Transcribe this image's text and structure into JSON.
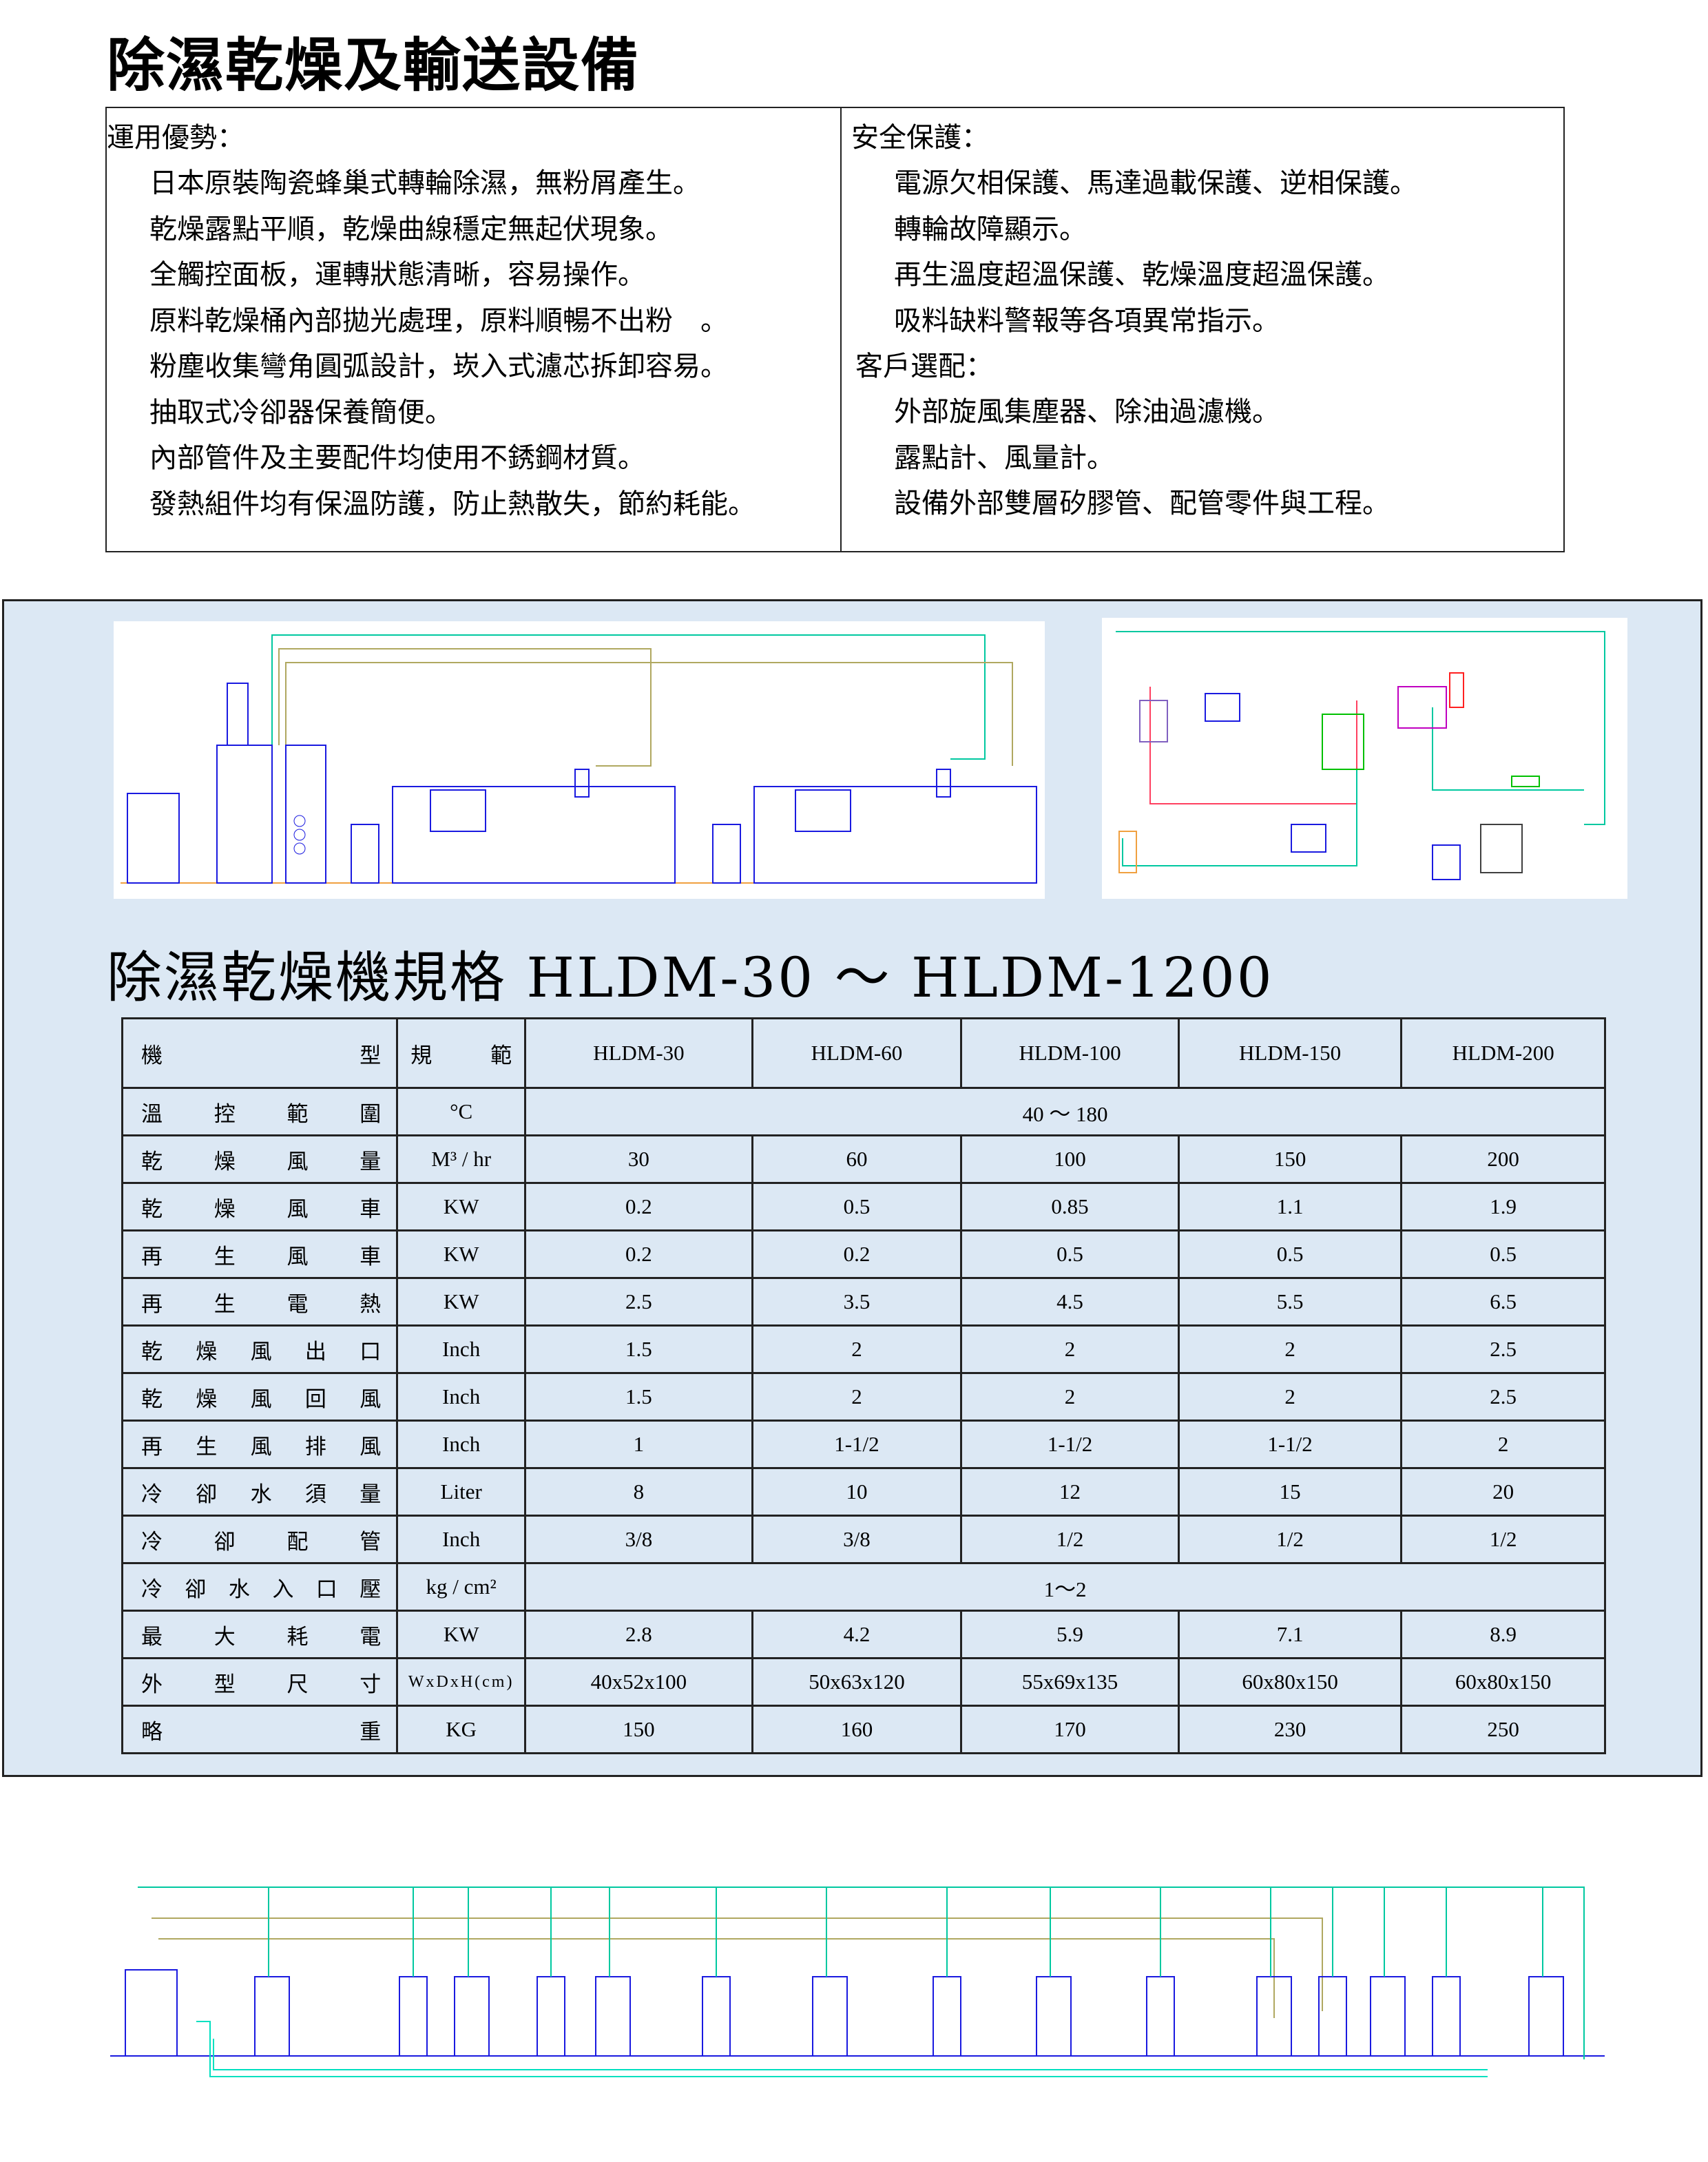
{
  "title": "除濕乾燥及輸送設備",
  "features": {
    "left_heading": "運用優勢：",
    "left_items": [
      "日本原裝陶瓷蜂巢式轉輪除濕，無粉屑產生。",
      "乾燥露點平順，乾燥曲線穩定無起伏現象。",
      "全觸控面板，運轉狀態清晰，容易操作。",
      "原料乾燥桶內部拋光處理，原料順暢不出粉　。",
      "粉塵收集彎角圓弧設計，崁入式濾芯拆卸容易。",
      "抽取式冷卻器保養簡便。",
      "內部管件及主要配件均使用不銹鋼材質。",
      "發熱組件均有保溫防護，防止熱散失，節約耗能。"
    ],
    "right_heading": "安全保護：",
    "right_items": [
      "電源欠相保護、馬達過載保護、逆相保護。",
      "轉輪故障顯示。",
      "再生溫度超溫保護、乾燥溫度超溫保護。",
      "吸料缺料警報等各項異常指示。"
    ],
    "options_heading": "客戶選配：",
    "options_items": [
      "外部旋風集塵器、除油過濾機。",
      "露點計、風量計。",
      "設備外部雙層矽膠管、配管零件與工程。"
    ]
  },
  "spec_title": "除濕乾燥機規格 HLDM-30 ～ HLDM-1200",
  "spec_table": {
    "header": {
      "label": "機型",
      "unit": "規範",
      "models": [
        "HLDM-30",
        "HLDM-60",
        "HLDM-100",
        "HLDM-150",
        "HLDM-200"
      ]
    },
    "rows": [
      {
        "label": "溫控範圍",
        "unit": "°C",
        "merged": "40 ～ 180"
      },
      {
        "label": "乾燥風量",
        "unit": "M³ / hr",
        "values": [
          "30",
          "60",
          "100",
          "150",
          "200"
        ]
      },
      {
        "label": "乾燥風車",
        "unit": "KW",
        "values": [
          "0.2",
          "0.5",
          "0.85",
          "1.1",
          "1.9"
        ]
      },
      {
        "label": "再生風車",
        "unit": "KW",
        "values": [
          "0.2",
          "0.2",
          "0.5",
          "0.5",
          "0.5"
        ]
      },
      {
        "label": "再生電熱",
        "unit": "KW",
        "values": [
          "2.5",
          "3.5",
          "4.5",
          "5.5",
          "6.5"
        ]
      },
      {
        "label": "乾燥風出口",
        "unit": "Inch",
        "values": [
          "1.5",
          "2",
          "2",
          "2",
          "2.5"
        ]
      },
      {
        "label": "乾燥風回風",
        "unit": "Inch",
        "values": [
          "1.5",
          "2",
          "2",
          "2",
          "2.5"
        ]
      },
      {
        "label": "再生風排風",
        "unit": "Inch",
        "values": [
          "1",
          "1-1/2",
          "1-1/2",
          "1-1/2",
          "2"
        ]
      },
      {
        "label": "冷卻水須量",
        "unit": "Liter",
        "values": [
          "8",
          "10",
          "12",
          "15",
          "20"
        ]
      },
      {
        "label": "冷卻配管",
        "unit": "Inch",
        "values": [
          "3/8",
          "3/8",
          "1/2",
          "1/2",
          "1/2"
        ]
      },
      {
        "label": "冷卻水入口壓",
        "unit": "kg / cm²",
        "merged": "1～2"
      },
      {
        "label": "最大耗電",
        "unit": "KW",
        "values": [
          "2.8",
          "4.2",
          "5.9",
          "7.1",
          "8.9"
        ]
      },
      {
        "label": "外型尺寸",
        "unit": "WxDxH(cm)",
        "values": [
          "40x52x100",
          "50x63x120",
          "55x69x135",
          "60x80x150",
          "60x80x150"
        ]
      },
      {
        "label": "略重",
        "unit": "KG",
        "values": [
          "150",
          "160",
          "170",
          "230",
          "250"
        ]
      }
    ]
  },
  "colors": {
    "panel_bg": "#dce8f4",
    "pipe_cyan": "#00c8a0",
    "pipe_olive": "#b0a860",
    "machine_blue": "#1a1ae0",
    "floor_orange": "#f0a040"
  }
}
